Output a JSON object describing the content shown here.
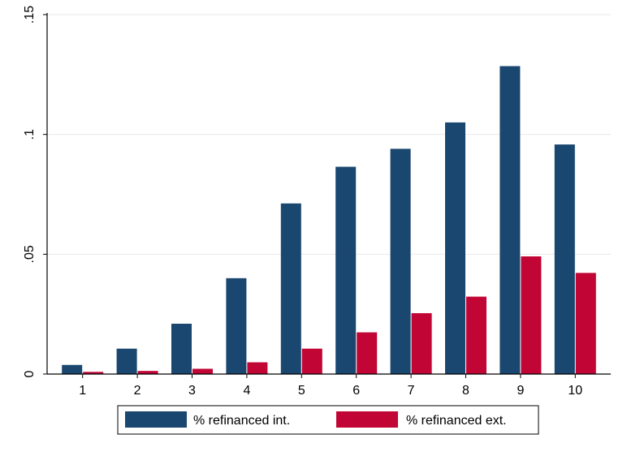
{
  "chart_data": {
    "type": "bar",
    "categories": [
      "1",
      "2",
      "3",
      "4",
      "5",
      "6",
      "7",
      "8",
      "9",
      "10"
    ],
    "series": [
      {
        "name": "% refinanced int.",
        "color": "#1a476f",
        "values": [
          0.0038,
          0.0106,
          0.021,
          0.04,
          0.0712,
          0.0865,
          0.094,
          0.105,
          0.1285,
          0.0958
        ]
      },
      {
        "name": "% refinanced ext.",
        "color": "#c10534",
        "values": [
          0.0009,
          0.0013,
          0.0022,
          0.0049,
          0.0106,
          0.0174,
          0.0254,
          0.0323,
          0.0491,
          0.0422
        ]
      }
    ],
    "ylim": [
      0,
      0.15
    ],
    "yticks": [
      0,
      0.05,
      0.1,
      0.15
    ],
    "ytick_labels": [
      "0",
      ".05",
      ".1",
      ".15"
    ],
    "grid": true,
    "legend_position": "bottom",
    "title": "",
    "xlabel": "",
    "ylabel": ""
  }
}
